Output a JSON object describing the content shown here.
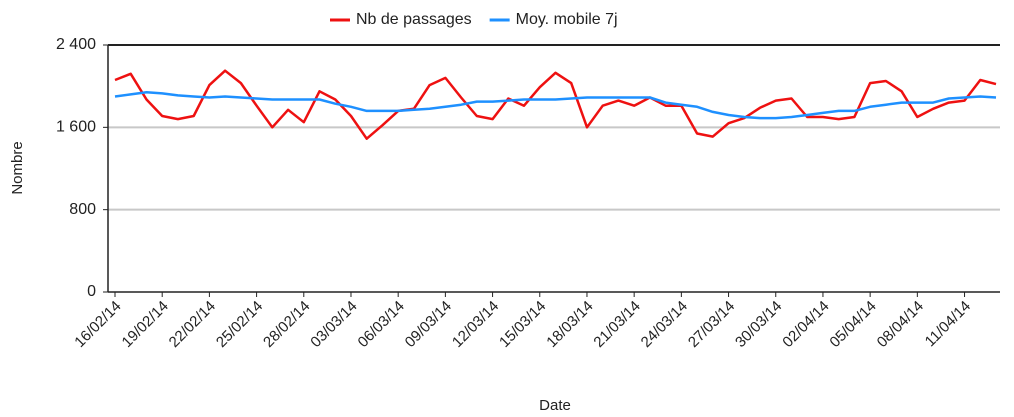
{
  "chart_data": {
    "type": "line",
    "x_label": "Date",
    "y_label": "Nombre",
    "categories": [
      "16/02/14",
      null,
      null,
      "19/02/14",
      null,
      null,
      "22/02/14",
      null,
      null,
      "25/02/14",
      null,
      null,
      "28/02/14",
      null,
      null,
      "03/03/14",
      null,
      null,
      "06/03/14",
      null,
      null,
      "09/03/14",
      null,
      null,
      "12/03/14",
      null,
      null,
      "15/03/14",
      null,
      null,
      "18/03/14",
      null,
      null,
      "21/03/14",
      null,
      null,
      "24/03/14",
      null,
      null,
      "27/03/14",
      null,
      null,
      "30/03/14",
      null,
      null,
      "02/04/14",
      null,
      null,
      "05/04/14",
      null,
      null,
      "08/04/14",
      null,
      null,
      "11/04/14",
      null,
      null
    ],
    "series": [
      {
        "name": "Nb de passages",
        "color": "#ee1111",
        "values": [
          2060,
          2120,
          1870,
          1710,
          1680,
          1710,
          2010,
          2150,
          2030,
          1810,
          1600,
          1770,
          1650,
          1950,
          1870,
          1710,
          1490,
          1620,
          1760,
          1780,
          2010,
          2080,
          1890,
          1710,
          1680,
          1880,
          1810,
          1990,
          2130,
          2030,
          1600,
          1810,
          1860,
          1810,
          1890,
          1810,
          1810,
          1540,
          1510,
          1640,
          1690,
          1790,
          1860,
          1880,
          1700,
          1700,
          1680,
          1700,
          2030,
          2050,
          1950,
          1700,
          1780,
          1840,
          1860,
          2060,
          2020
        ]
      },
      {
        "name": "Moy. mobile 7j",
        "color": "#1e90ff",
        "values": [
          1900,
          1920,
          1940,
          1930,
          1910,
          1900,
          1890,
          1900,
          1890,
          1880,
          1870,
          1870,
          1870,
          1870,
          1830,
          1800,
          1760,
          1760,
          1760,
          1770,
          1780,
          1800,
          1820,
          1850,
          1850,
          1860,
          1870,
          1870,
          1870,
          1880,
          1890,
          1890,
          1890,
          1890,
          1890,
          1840,
          1820,
          1800,
          1750,
          1720,
          1700,
          1690,
          1690,
          1700,
          1720,
          1740,
          1760,
          1760,
          1800,
          1820,
          1840,
          1840,
          1840,
          1880,
          1890,
          1900,
          1890
        ]
      }
    ],
    "ylim": [
      0,
      2400
    ],
    "yticks": [
      0,
      800,
      {
        "value": 1600,
        "label": "1 600"
      },
      {
        "value": 2400,
        "label": "2 400"
      }
    ],
    "grid": true,
    "legend": "top"
  }
}
